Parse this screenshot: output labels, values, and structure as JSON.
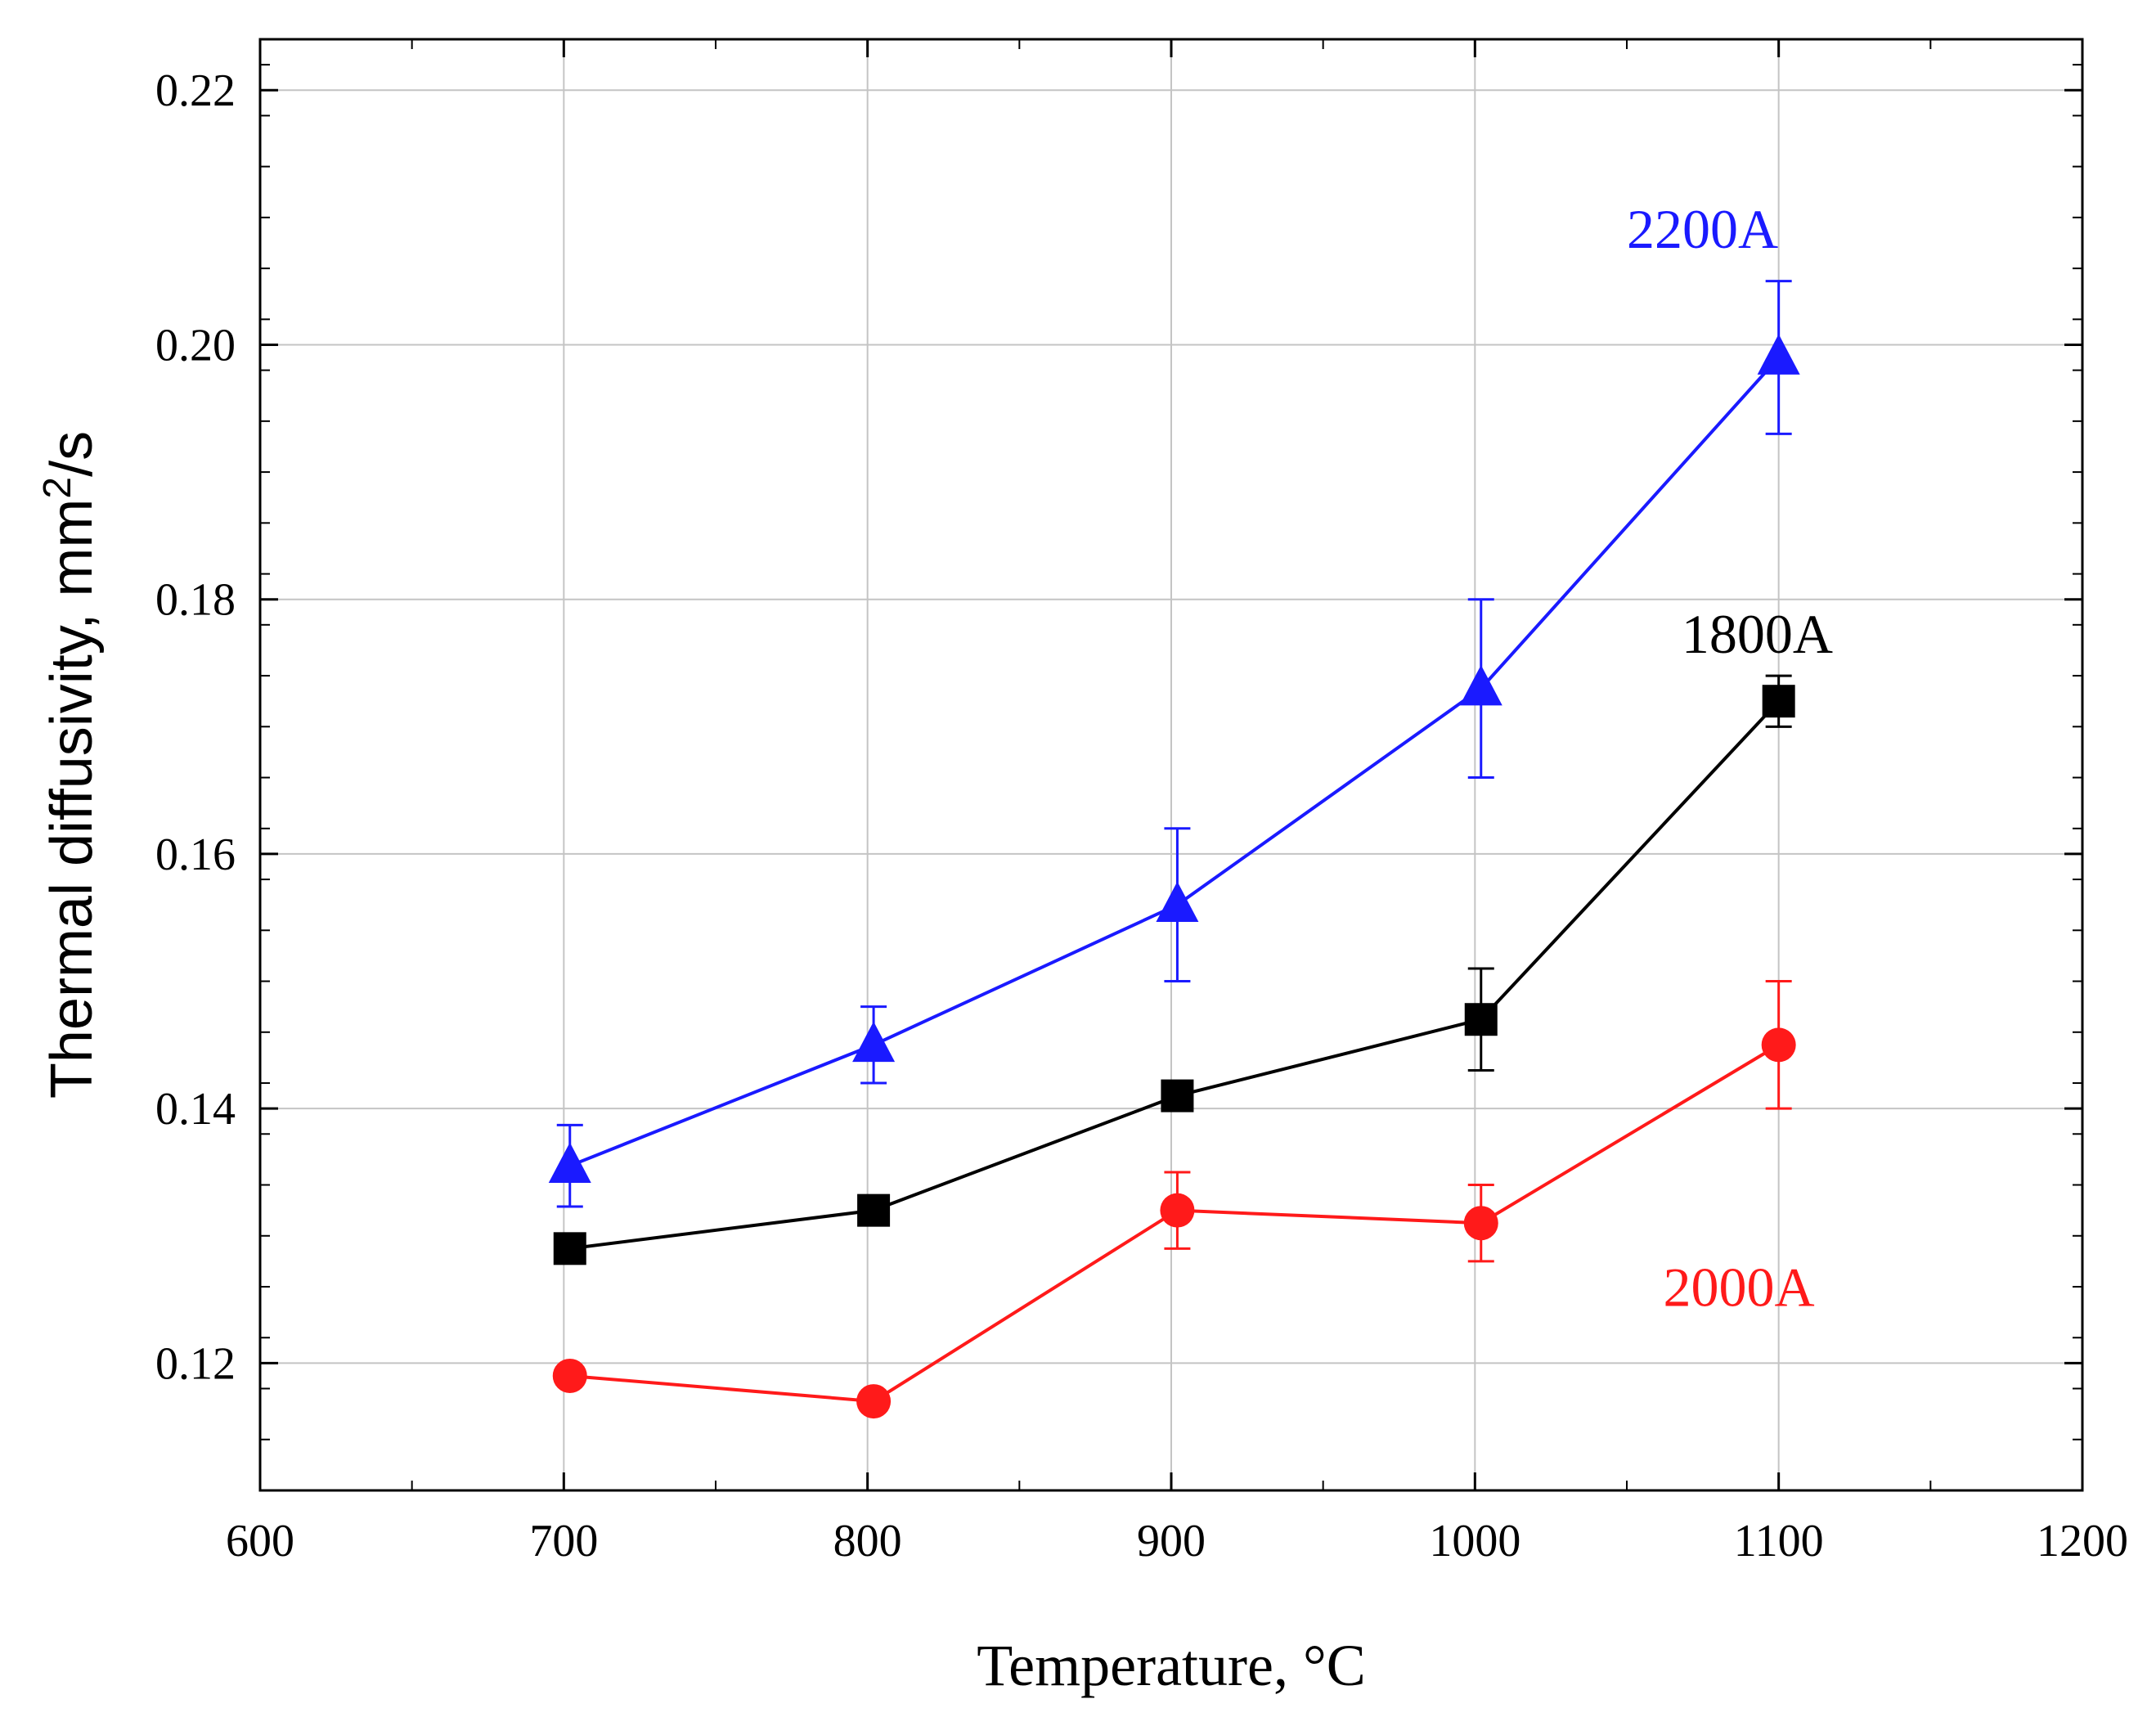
{
  "chart_data": {
    "type": "line",
    "title": "",
    "xlabel": "Temperature, °C",
    "ylabel_main": "Thermal diffusivity, mm",
    "ylabel_sup": "2",
    "ylabel_tail": "/s",
    "xlim": [
      600,
      1200
    ],
    "ylim": [
      0.11,
      0.224
    ],
    "xticks": [
      600,
      700,
      800,
      900,
      1000,
      1100,
      1200
    ],
    "xtick_labels": [
      "600",
      "700",
      "800",
      "900",
      "1000",
      "1100",
      "1200"
    ],
    "yticks": [
      0.12,
      0.14,
      0.16,
      0.18,
      0.2,
      0.22
    ],
    "ytick_labels": [
      "0.12",
      "0.14",
      "0.16",
      "0.18",
      "0.20",
      "0.22"
    ],
    "grid": true,
    "series": [
      {
        "name": "2200A",
        "color": "#1a1aff",
        "marker": "triangle",
        "x": [
          702,
          802,
          902,
          1002,
          1100
        ],
        "y": [
          0.1355,
          0.145,
          0.156,
          0.173,
          0.199
        ],
        "err": [
          0.0032,
          0.003,
          0.006,
          0.007,
          0.006
        ]
      },
      {
        "name": "1800A",
        "color": "#000000",
        "marker": "square",
        "x": [
          702,
          802,
          902,
          1002,
          1100
        ],
        "y": [
          0.129,
          0.132,
          0.141,
          0.147,
          0.172
        ],
        "err": [
          0,
          0,
          0,
          0.004,
          0.002
        ]
      },
      {
        "name": "2000A",
        "color": "#ff1a1a",
        "marker": "circle",
        "x": [
          702,
          802,
          902,
          1002,
          1100
        ],
        "y": [
          0.119,
          0.117,
          0.132,
          0.131,
          0.145
        ],
        "err": [
          0,
          0,
          0.003,
          0.003,
          0.005
        ]
      }
    ]
  }
}
